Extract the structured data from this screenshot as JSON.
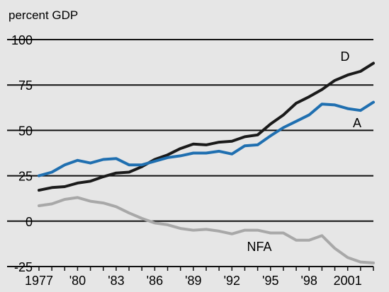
{
  "chart_data": {
    "type": "line",
    "title": "",
    "ylabel": "percent GDP",
    "xlabel": "",
    "ylim": [
      -25,
      100
    ],
    "xlim": [
      1977,
      2003
    ],
    "grid": true,
    "yticks": [
      100,
      75,
      50,
      25,
      0,
      -25
    ],
    "xticks": [
      {
        "x": 1977,
        "label": "1977"
      },
      {
        "x": 1980,
        "label": "'80"
      },
      {
        "x": 1983,
        "label": "'83"
      },
      {
        "x": 1986,
        "label": "'86"
      },
      {
        "x": 1989,
        "label": "'89"
      },
      {
        "x": 1992,
        "label": "'92"
      },
      {
        "x": 1995,
        "label": "'95"
      },
      {
        "x": 1998,
        "label": "'98"
      },
      {
        "x": 2001,
        "label": "2001"
      }
    ],
    "x": [
      1977,
      1978,
      1979,
      1980,
      1981,
      1982,
      1983,
      1984,
      1985,
      1986,
      1987,
      1988,
      1989,
      1990,
      1991,
      1992,
      1993,
      1994,
      1995,
      1996,
      1997,
      1998,
      1999,
      2000,
      2001,
      2002,
      2003
    ],
    "series": [
      {
        "name": "D",
        "color": "#1a1a1a",
        "values": [
          17,
          18.5,
          19,
          21,
          22,
          24.5,
          26.5,
          27,
          30,
          34,
          36.5,
          40,
          42.5,
          42,
          43.5,
          44,
          46.5,
          47.5,
          53.5,
          58.5,
          65,
          68.5,
          72.5,
          77.5,
          80.5,
          82.5,
          87
        ]
      },
      {
        "name": "A",
        "color": "#1f6fb0",
        "values": [
          25,
          27,
          31,
          33.5,
          32,
          34,
          34.5,
          31,
          31,
          33,
          35,
          36,
          37.5,
          37.5,
          38.5,
          37,
          41.5,
          42,
          47,
          51.5,
          55,
          58.5,
          64.5,
          64,
          62,
          61,
          65.5
        ]
      },
      {
        "name": "NFA",
        "color": "#a8a8a8",
        "values": [
          8.5,
          9.5,
          12,
          13,
          11,
          10,
          8,
          4.5,
          1.5,
          -1,
          -2,
          -4,
          -5,
          -4.5,
          -5.5,
          -7,
          -5,
          -5,
          -6.5,
          -6.5,
          -10.5,
          -10.5,
          -8,
          -15,
          -20,
          -22.5,
          -23
        ]
      }
    ]
  }
}
